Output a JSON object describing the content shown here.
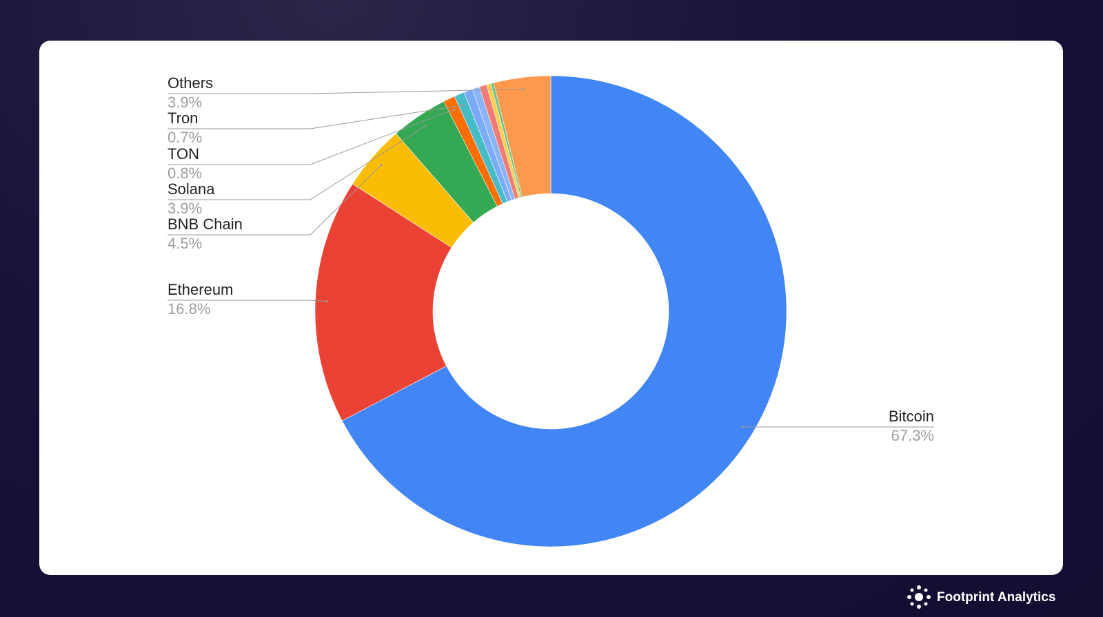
{
  "chart_data": {
    "type": "donut",
    "categories": [
      "Bitcoin",
      "Ethereum",
      "BNB Chain",
      "Solana",
      "TON",
      "Tron",
      null,
      null,
      null,
      null,
      null,
      "Others"
    ],
    "values": [
      67.3,
      16.8,
      4.5,
      3.9,
      0.8,
      0.7,
      0.6,
      0.5,
      0.5,
      0.3,
      0.2,
      3.9
    ],
    "value_labels": [
      "67.3%",
      "16.8%",
      "4.5%",
      "3.9%",
      "0.8%",
      "0.7%",
      null,
      null,
      null,
      null,
      null,
      "3.9%"
    ],
    "colors": [
      "#4285f4",
      "#ea4335",
      "#fbbc04",
      "#34a853",
      "#ff6d01",
      "#46bdc6",
      "#7baaf7",
      "#8ab4f8",
      "#f07b72",
      "#fcd04f",
      "#71c287",
      "#ff994d"
    ]
  },
  "brand": "Footprint Analytics"
}
